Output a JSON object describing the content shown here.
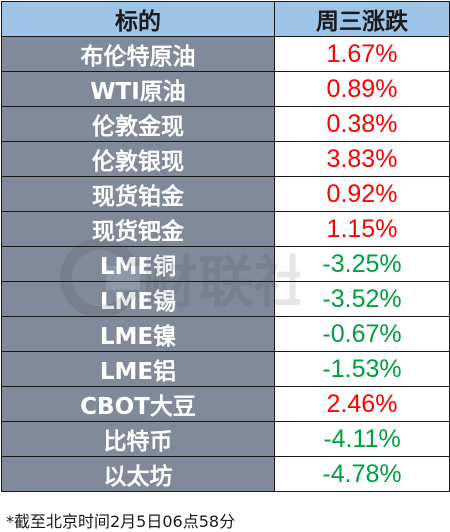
{
  "table": {
    "headers": [
      "标的",
      "周三涨跌"
    ],
    "rows": [
      {
        "name": "布伦特原油",
        "change": "1.67%",
        "dir": "up"
      },
      {
        "name": "WTI原油",
        "change": "0.89%",
        "dir": "up"
      },
      {
        "name": "伦敦金现",
        "change": "0.38%",
        "dir": "up"
      },
      {
        "name": "伦敦银现",
        "change": "3.83%",
        "dir": "up"
      },
      {
        "name": "现货铂金",
        "change": "0.92%",
        "dir": "up"
      },
      {
        "name": "现货钯金",
        "change": "1.15%",
        "dir": "up"
      },
      {
        "name": "LME铜",
        "change": "-3.25%",
        "dir": "down"
      },
      {
        "name": "LME锡",
        "change": "-3.52%",
        "dir": "down"
      },
      {
        "name": "LME镍",
        "change": "-0.67%",
        "dir": "down"
      },
      {
        "name": "LME铝",
        "change": "-1.53%",
        "dir": "down"
      },
      {
        "name": "CBOT大豆",
        "change": "2.46%",
        "dir": "up"
      },
      {
        "name": "比特币",
        "change": "-4.11%",
        "dir": "down"
      },
      {
        "name": "以太坊",
        "change": "-4.78%",
        "dir": "down"
      }
    ]
  },
  "colors": {
    "header_bg": "#9dc3e6",
    "name_bg": "#808a9a",
    "up": "#ff0000",
    "down": "#00a040"
  },
  "watermark": {
    "text": "财联社"
  },
  "footnote": "*截至北京时间2月5日06点58分"
}
